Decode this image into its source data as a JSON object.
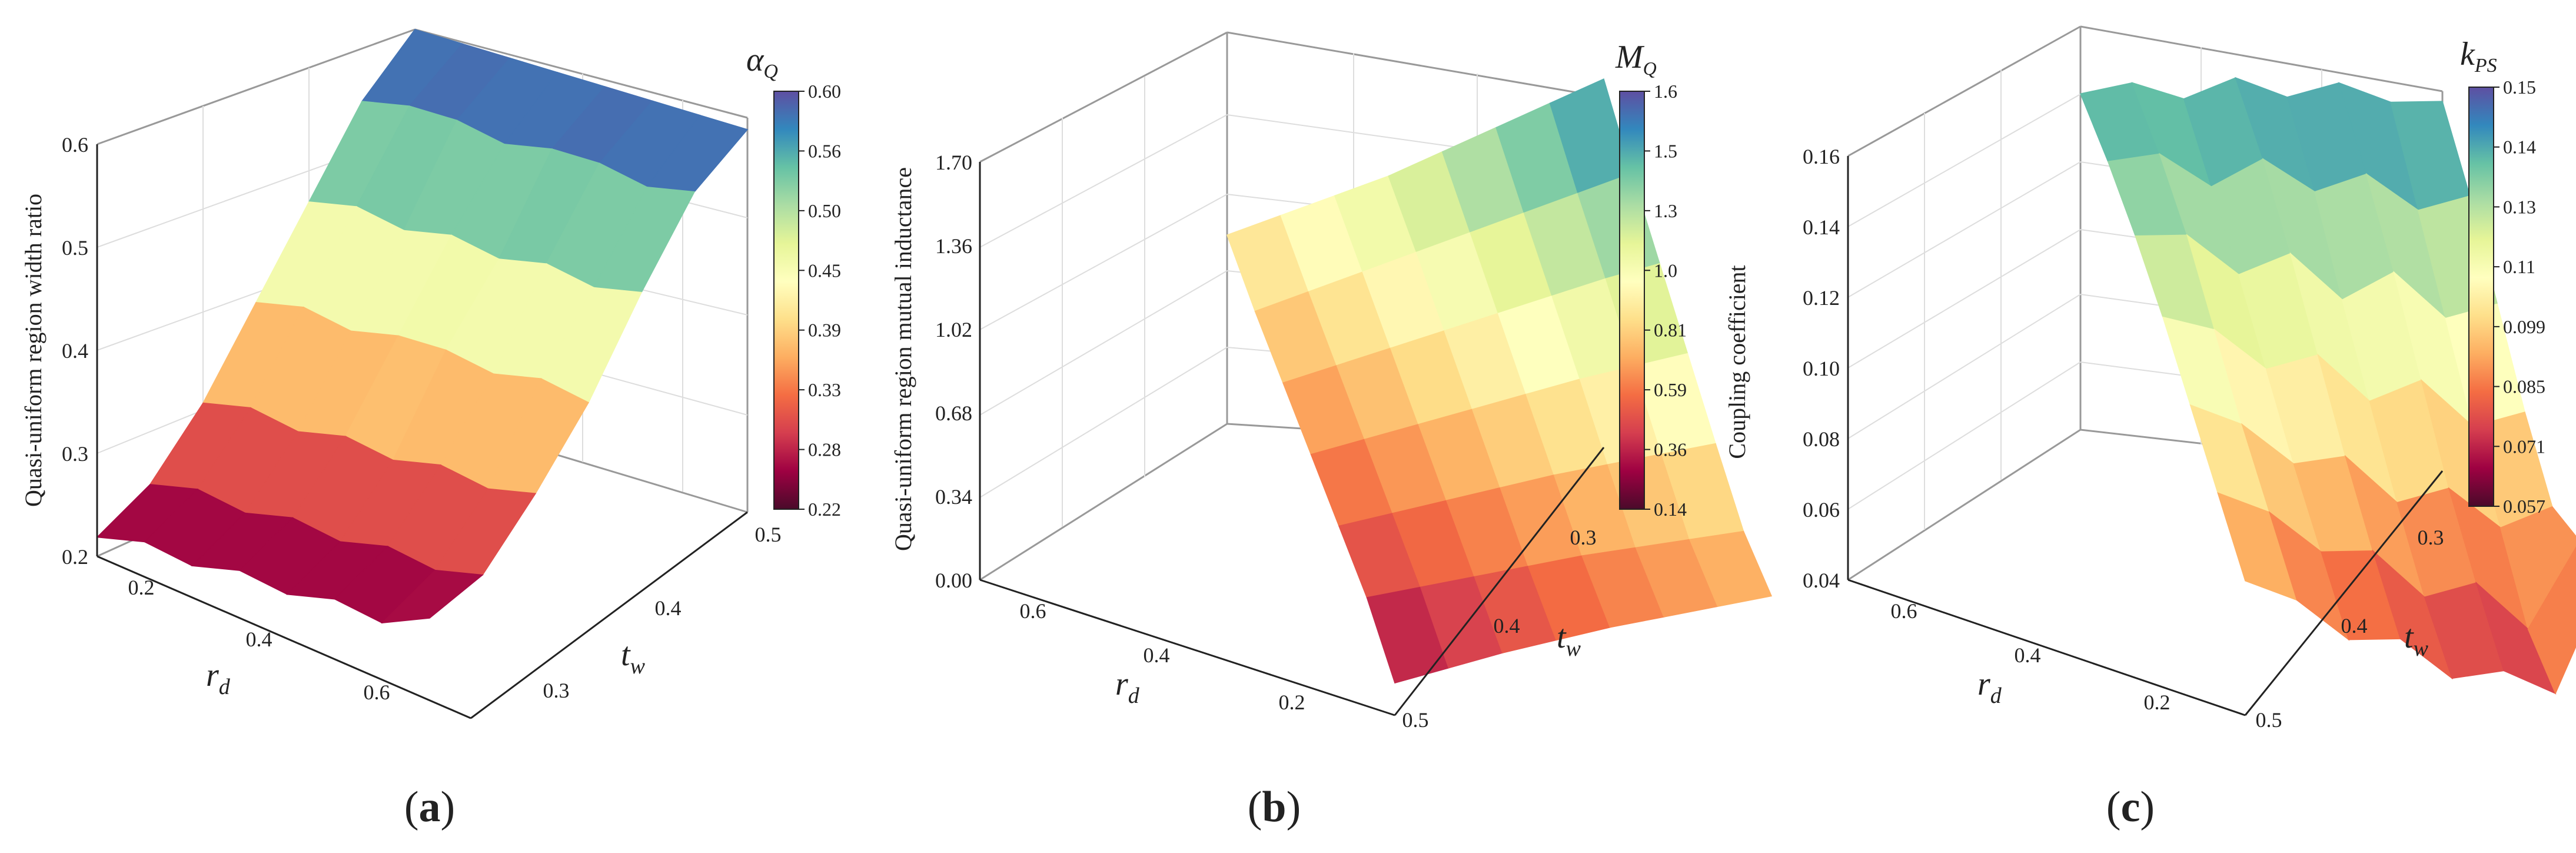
{
  "colormap": [
    "#5e4fa2",
    "#3288bd",
    "#66c2a5",
    "#abdda4",
    "#e6f598",
    "#ffffbf",
    "#fee08b",
    "#fdae61",
    "#f46d43",
    "#d53e4f",
    "#9e0142",
    "#4a0a2a"
  ],
  "chart_data": [
    {
      "type": "surface3d",
      "caption": "a",
      "zlabel": "Quasi-uniform region width ratio",
      "xlabel_main": "r",
      "xlabel_sub": "d",
      "ylabel_main": "t",
      "ylabel_sub": "w",
      "x_ticks": [
        "0.2",
        "0.4",
        "0.6"
      ],
      "y_ticks": [
        "0.3",
        "0.4",
        "0.5"
      ],
      "z_ticks": [
        "0.2",
        "0.3",
        "0.4",
        "0.5",
        "0.6"
      ],
      "zlim": [
        0.2,
        0.6
      ],
      "colorbar_title_main": "α",
      "colorbar_title_sub": "Q",
      "colorbar_ticks": [
        "0.60",
        "0.56",
        "0.50",
        "0.45",
        "0.39",
        "0.33",
        "0.28",
        "0.22"
      ],
      "surface_z": [
        [
          0.6,
          0.6,
          0.6,
          0.6,
          0.6,
          0.6,
          0.6,
          0.6
        ],
        [
          0.55,
          0.56,
          0.56,
          0.55,
          0.56,
          0.56,
          0.55,
          0.56
        ],
        [
          0.47,
          0.48,
          0.47,
          0.48,
          0.47,
          0.48,
          0.47,
          0.48
        ],
        [
          0.39,
          0.4,
          0.39,
          0.4,
          0.4,
          0.39,
          0.4,
          0.39
        ],
        [
          0.31,
          0.32,
          0.31,
          0.32,
          0.31,
          0.32,
          0.31,
          0.32
        ],
        [
          0.25,
          0.26,
          0.25,
          0.26,
          0.25,
          0.26,
          0.25,
          0.26
        ],
        [
          0.22,
          0.23,
          0.22,
          0.23,
          0.22,
          0.23,
          0.22,
          0.24
        ]
      ]
    },
    {
      "type": "surface3d",
      "caption": "b",
      "zlabel": "Quasi-uniform region mutual inductance",
      "xlabel_main": "r",
      "xlabel_sub": "d",
      "ylabel_main": "t",
      "ylabel_sub": "w",
      "x_ticks": [
        "0.6",
        "0.4",
        "0.2"
      ],
      "y_ticks": [
        "0.3",
        "0.4",
        "0.5"
      ],
      "z_ticks": [
        "0.00",
        "0.34",
        "0.68",
        "1.02",
        "1.36",
        "1.70"
      ],
      "zlim": [
        0.0,
        1.7
      ],
      "colorbar_title_main": "M",
      "colorbar_title_sub": "Q",
      "colorbar_ticks": [
        "1.6",
        "1.5",
        "1.3",
        "1.0",
        "0.81",
        "0.59",
        "0.36",
        "0.14"
      ],
      "surface_z": [
        [
          0.82,
          0.92,
          1.02,
          1.12,
          1.24,
          1.36,
          1.48,
          1.6
        ],
        [
          0.7,
          0.8,
          0.9,
          1.0,
          1.1,
          1.2,
          1.3,
          1.4
        ],
        [
          0.6,
          0.69,
          0.78,
          0.87,
          0.96,
          1.05,
          1.14,
          1.22
        ],
        [
          0.5,
          0.58,
          0.66,
          0.74,
          0.82,
          0.9,
          0.97,
          1.04
        ],
        [
          0.4,
          0.47,
          0.54,
          0.61,
          0.68,
          0.74,
          0.8,
          0.86
        ],
        [
          0.3,
          0.36,
          0.42,
          0.48,
          0.54,
          0.59,
          0.64,
          0.69
        ],
        [
          0.14,
          0.22,
          0.3,
          0.37,
          0.44,
          0.5,
          0.56,
          0.62
        ]
      ]
    },
    {
      "type": "surface3d",
      "caption": "c",
      "zlabel": "Coupling coefficient",
      "xlabel_main": "r",
      "xlabel_sub": "d",
      "ylabel_main": "t",
      "ylabel_sub": "w",
      "x_ticks": [
        "0.6",
        "0.4",
        "0.2"
      ],
      "y_ticks": [
        "0.3",
        "0.4",
        "0.5"
      ],
      "z_ticks": [
        "0.04",
        "0.06",
        "0.08",
        "0.10",
        "0.12",
        "0.14",
        "0.16"
      ],
      "zlim": [
        0.04,
        0.16
      ],
      "colorbar_title_main": "k",
      "colorbar_title_sub": "PS",
      "colorbar_ticks": [
        "0.15",
        "0.14",
        "0.13",
        "0.11",
        "0.099",
        "0.085",
        "0.071",
        "0.057"
      ],
      "surface_z": [
        [
          0.14,
          0.145,
          0.142,
          0.15,
          0.146,
          0.152,
          0.148,
          0.15
        ],
        [
          0.134,
          0.138,
          0.13,
          0.14,
          0.132,
          0.139,
          0.13,
          0.136
        ],
        [
          0.126,
          0.128,
          0.118,
          0.126,
          0.114,
          0.124,
          0.112,
          0.118
        ],
        [
          0.116,
          0.114,
          0.104,
          0.11,
          0.098,
          0.106,
          0.094,
          0.1
        ],
        [
          0.104,
          0.1,
          0.09,
          0.094,
          0.082,
          0.088,
          0.078,
          0.086
        ],
        [
          0.092,
          0.088,
          0.078,
          0.08,
          0.068,
          0.074,
          0.062,
          0.09
        ],
        [
          0.08,
          0.076,
          0.066,
          0.068,
          0.058,
          0.062,
          0.057,
          0.094
        ]
      ]
    }
  ]
}
